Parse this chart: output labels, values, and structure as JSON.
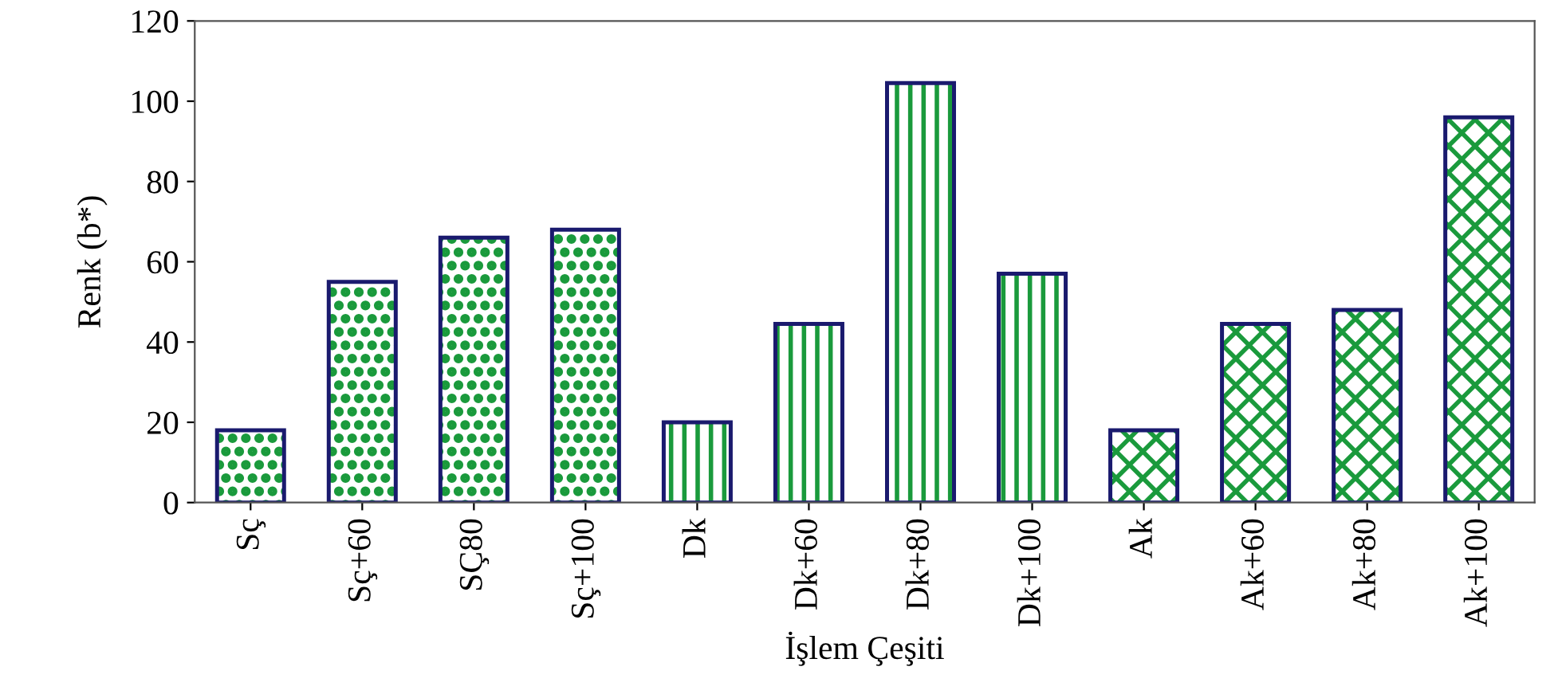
{
  "chart_data": {
    "type": "bar",
    "xlabel": "İşlem Çeşiti",
    "ylabel": "Renk (b*)",
    "categories": [
      "Sç",
      "Sç+60",
      "SÇ80",
      "Sç+100",
      "Dk",
      "Dk+60",
      "Dk+80",
      "Dk+100",
      "Ak",
      "Ak+60",
      "Ak+80",
      "Ak+100"
    ],
    "values": [
      18,
      55,
      66,
      68,
      20,
      44.5,
      104.5,
      57,
      18,
      44.5,
      48,
      96
    ],
    "colors": [
      "#1a9a3c",
      "#1a9a3c",
      "#1a9a3c",
      "#1a9a3c",
      "#1a9a3c",
      "#1a9a3c",
      "#1a9a3c",
      "#1a9a3c",
      "#1a9a3c",
      "#1a9a3c",
      "#1a9a3c",
      "#1a9a3c"
    ],
    "ylim": [
      0,
      120
    ],
    "yticks": [
      0,
      20,
      40,
      60,
      80,
      100,
      120
    ],
    "grid": false
  }
}
